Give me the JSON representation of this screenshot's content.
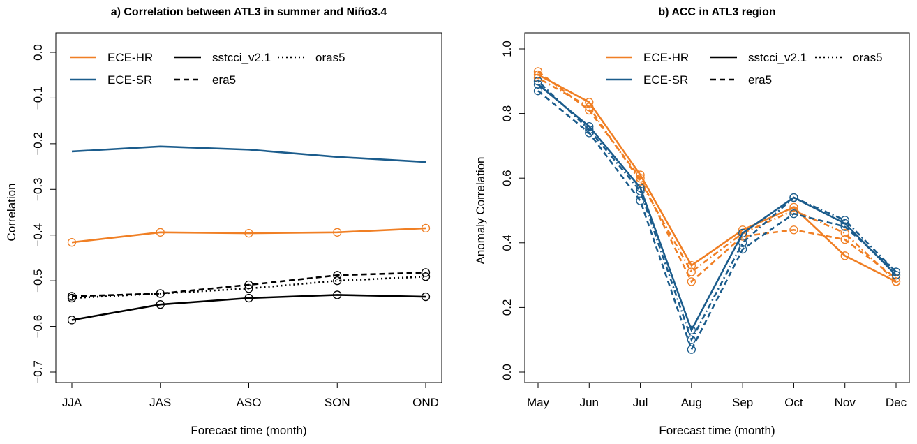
{
  "chart_data": [
    {
      "type": "line",
      "title": "a) Correlation between ATL3 in summer and Niño3.4",
      "xlabel": "Forecast time (month)",
      "ylabel": "Correlation",
      "categories": [
        "JJA",
        "JAS",
        "ASO",
        "SON",
        "OND"
      ],
      "ylim": [
        -0.7,
        0.0
      ],
      "yticks": [
        {
          "value": -0.7,
          "label": "−0.7"
        },
        {
          "value": -0.6,
          "label": "−0.6"
        },
        {
          "value": -0.5,
          "label": "−0.5"
        },
        {
          "value": -0.4,
          "label": "−0.4"
        },
        {
          "value": -0.3,
          "label": "−0.3"
        },
        {
          "value": -0.2,
          "label": "−0.2"
        },
        {
          "value": -0.1,
          "label": "−0.1"
        },
        {
          "value": 0.0,
          "label": "0.0"
        }
      ],
      "legend_position": "top-left",
      "legend": [
        {
          "name": "ECE-HR",
          "color": "#f07f24",
          "linestyle": "solid"
        },
        {
          "name": "ECE-SR",
          "color": "#1b5c8c",
          "linestyle": "solid"
        },
        {
          "name": "sstcci_v2.1",
          "color": "#000000",
          "linestyle": "solid"
        },
        {
          "name": "era5",
          "color": "#000000",
          "linestyle": "dashed"
        },
        {
          "name": "oras5",
          "color": "#000000",
          "linestyle": "dotted"
        }
      ],
      "series": [
        {
          "color": "#1b5c8c",
          "linestyle": "solid",
          "markers": false,
          "values": [
            -0.217,
            -0.206,
            -0.213,
            -0.229,
            -0.24
          ]
        },
        {
          "color": "#f07f24",
          "linestyle": "solid",
          "markers": true,
          "values": [
            -0.416,
            -0.394,
            -0.396,
            -0.394,
            -0.385
          ]
        },
        {
          "color": "#000000",
          "linestyle": "solid",
          "markers": true,
          "values": [
            -0.586,
            -0.552,
            -0.538,
            -0.531,
            -0.535
          ]
        },
        {
          "color": "#000000",
          "linestyle": "dashed",
          "markers": true,
          "values": [
            -0.534,
            -0.528,
            -0.509,
            -0.488,
            -0.482
          ]
        },
        {
          "color": "#000000",
          "linestyle": "dotted",
          "markers": true,
          "values": [
            -0.538,
            -0.528,
            -0.517,
            -0.5,
            -0.491
          ]
        }
      ]
    },
    {
      "type": "line",
      "title": "b) ACC in ATL3 region",
      "xlabel": "Forecast time (month)",
      "ylabel": "Anomaly Correlation",
      "categories": [
        "May",
        "Jun",
        "Jul",
        "Aug",
        "Sep",
        "Oct",
        "Nov",
        "Dec"
      ],
      "ylim": [
        0.0,
        1.0
      ],
      "yticks": [
        {
          "value": 0.0,
          "label": "0.0"
        },
        0.2,
        0.4,
        0.6,
        0.8,
        {
          "value": 1.0,
          "label": "1.0"
        }
      ],
      "legend_position": "top-right",
      "legend": [
        {
          "name": "ECE-HR",
          "color": "#f07f24",
          "linestyle": "solid"
        },
        {
          "name": "ECE-SR",
          "color": "#1b5c8c",
          "linestyle": "solid"
        },
        {
          "name": "sstcci_v2.1",
          "color": "#000000",
          "linestyle": "solid"
        },
        {
          "name": "era5",
          "color": "#000000",
          "linestyle": "dashed"
        },
        {
          "name": "oras5",
          "color": "#000000",
          "linestyle": "dotted"
        }
      ],
      "series": [
        {
          "color": "#f07f24",
          "linestyle": "solid",
          "markers": true,
          "values": [
            0.92,
            0.835,
            0.61,
            0.33,
            0.44,
            0.51,
            0.36,
            0.28
          ]
        },
        {
          "color": "#f07f24",
          "linestyle": "dashed",
          "markers": true,
          "values": [
            0.93,
            0.81,
            0.6,
            0.28,
            0.42,
            0.44,
            0.41,
            0.29
          ]
        },
        {
          "color": "#f07f24",
          "linestyle": "dotdash",
          "markers": true,
          "values": [
            0.91,
            0.82,
            0.59,
            0.31,
            0.43,
            0.5,
            0.43,
            0.28
          ]
        },
        {
          "color": "#1b5c8c",
          "linestyle": "solid",
          "markers": true,
          "values": [
            0.89,
            0.76,
            0.57,
            0.13,
            0.43,
            0.54,
            0.46,
            0.3
          ]
        },
        {
          "color": "#1b5c8c",
          "linestyle": "dashed",
          "markers": true,
          "values": [
            0.87,
            0.74,
            0.53,
            0.07,
            0.38,
            0.49,
            0.45,
            0.31
          ]
        },
        {
          "color": "#1b5c8c",
          "linestyle": "dotdash",
          "markers": true,
          "values": [
            0.9,
            0.75,
            0.56,
            0.1,
            0.4,
            0.54,
            0.47,
            0.31
          ]
        }
      ]
    }
  ]
}
